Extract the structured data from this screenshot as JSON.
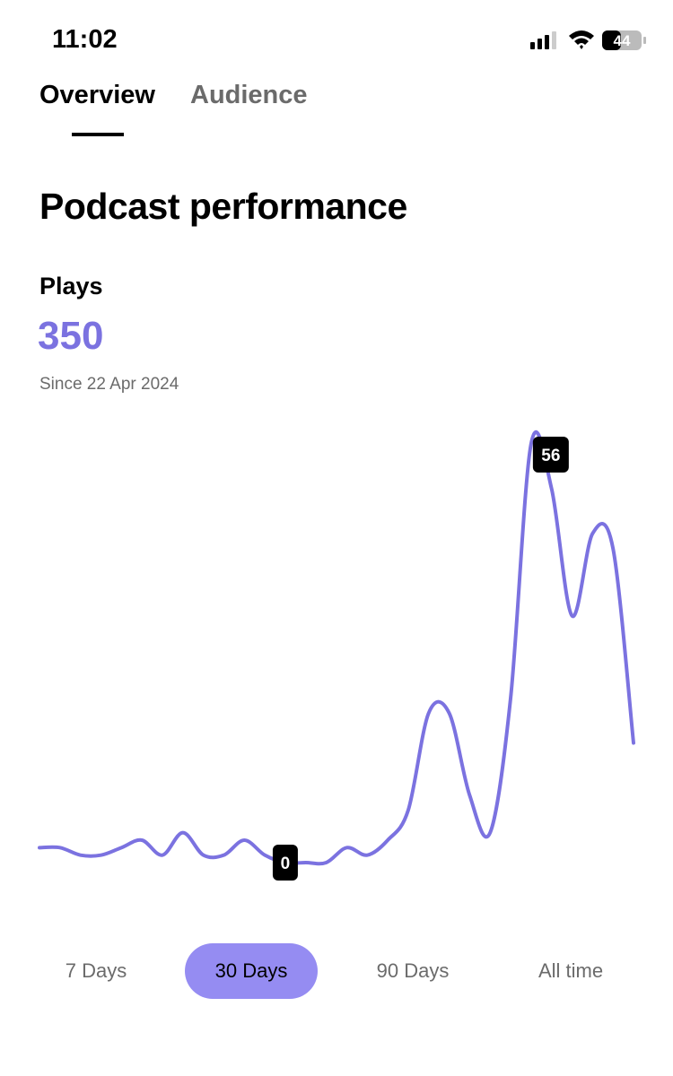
{
  "status_bar": {
    "time": "11:02",
    "battery": "44"
  },
  "tabs": [
    "Overview",
    "Audience"
  ],
  "title": "Podcast performance",
  "metric": {
    "label": "Plays",
    "value": "350",
    "since": "Since 22 Apr 2024"
  },
  "chart_data": {
    "type": "line",
    "series": [
      {
        "name": "Plays",
        "color": "#7b72e0",
        "values": [
          2,
          2,
          1,
          1,
          2,
          3,
          1,
          4,
          1,
          1,
          3,
          1,
          0,
          0,
          0,
          2,
          1,
          3,
          7,
          20,
          20,
          9,
          4,
          22,
          56,
          50,
          33,
          44,
          42,
          16
        ]
      }
    ]
  },
  "range_options": [
    "7 Days",
    "30 Days",
    "90 Days",
    "All time"
  ]
}
